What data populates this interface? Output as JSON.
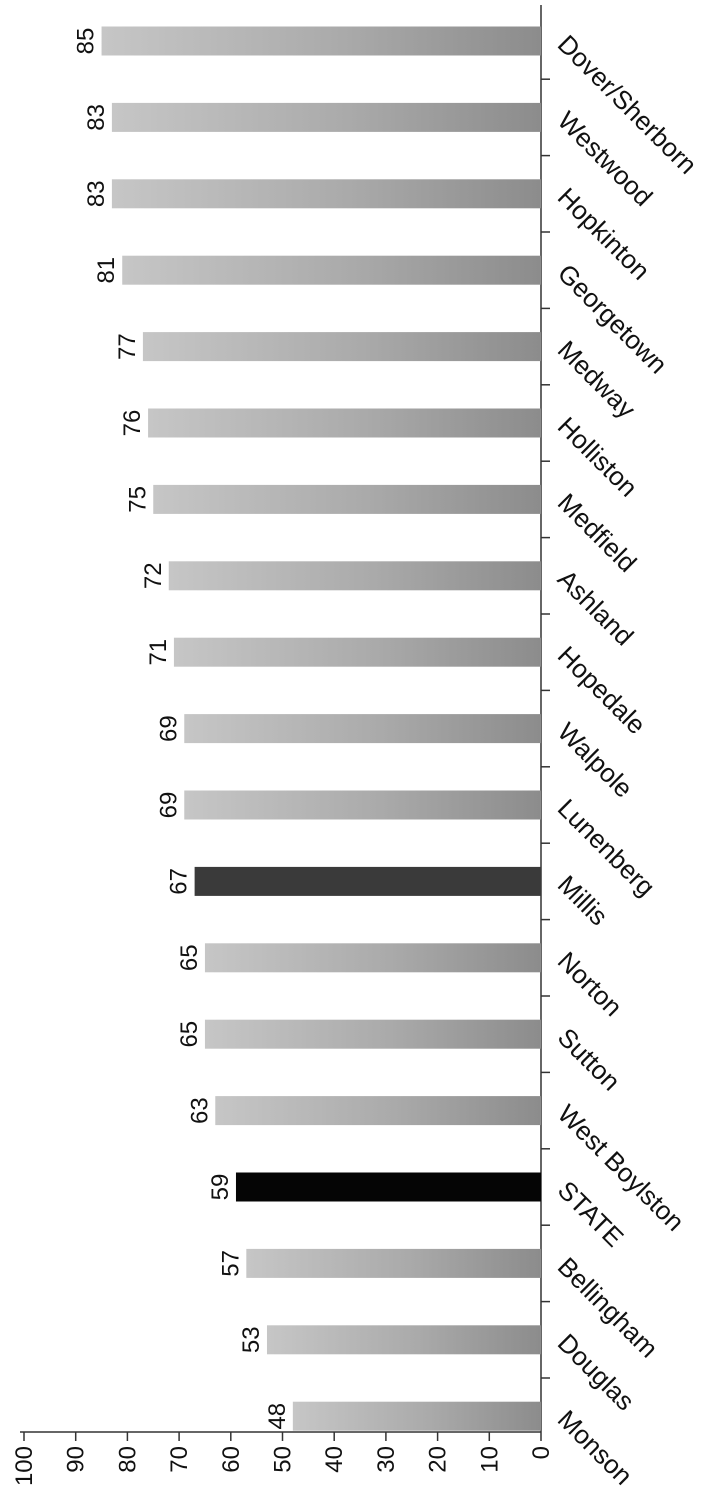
{
  "chart_data": {
    "type": "bar",
    "orientation": "horizontal",
    "title": "",
    "xlabel": "",
    "ylabel": "",
    "categories": [
      "Dover/Sherborn",
      "Westwood",
      "Hopkinton",
      "Georgetown",
      "Medway",
      "Holliston",
      "Medfield",
      "Ashland",
      "Hopedale",
      "Walpole",
      "Lunenberg",
      "Millis",
      "Norton",
      "Sutton",
      "West Boylston",
      "STATE",
      "Bellingham",
      "Douglas",
      "Monson"
    ],
    "values": [
      85,
      83,
      83,
      81,
      77,
      76,
      75,
      72,
      71,
      69,
      69,
      67,
      65,
      65,
      63,
      59,
      57,
      53,
      48
    ],
    "value_labels": [
      "85",
      "83",
      "83",
      "81",
      "77",
      "76",
      "75",
      "72",
      "71",
      "69",
      "69",
      "67",
      "65",
      "65",
      "63",
      "59",
      "57",
      "53",
      "48"
    ],
    "bar_colors": [
      "#a9a9a9",
      "#a9a9a9",
      "#a9a9a9",
      "#a9a9a9",
      "#a9a9a9",
      "#a9a9a9",
      "#a9a9a9",
      "#a9a9a9",
      "#a9a9a9",
      "#a9a9a9",
      "#a9a9a9",
      "#3a3a3a",
      "#a9a9a9",
      "#a9a9a9",
      "#a9a9a9",
      "#050505",
      "#a9a9a9",
      "#a9a9a9",
      "#a9a9a9"
    ],
    "value_axis": {
      "min": 0,
      "max": 100,
      "ticks": [
        0,
        10,
        20,
        30,
        40,
        50,
        60,
        70,
        80,
        90,
        100
      ],
      "tick_labels": [
        "0",
        "10",
        "20",
        "30",
        "40",
        "50",
        "60",
        "70",
        "80",
        "90",
        "100"
      ]
    },
    "grid": false,
    "legend": "none",
    "rotation": "image rotated 90 degrees clockwise"
  }
}
